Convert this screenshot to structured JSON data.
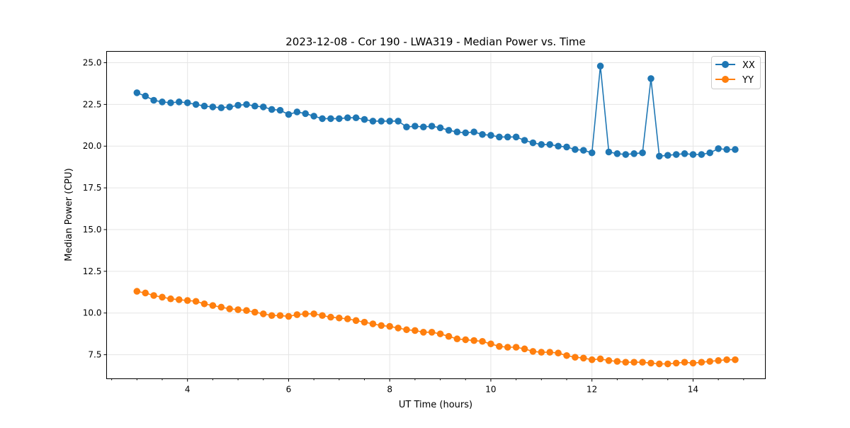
{
  "chart_data": {
    "type": "line",
    "title": "2023-12-08 - Cor 190 - LWA319 - Median Power vs. Time",
    "xlabel": "UT Time (hours)",
    "ylabel": "Median Power (CPU)",
    "xlim": [
      2.4,
      15.43
    ],
    "ylim": [
      6.06,
      25.68
    ],
    "xticks": [
      4,
      6,
      8,
      10,
      12,
      14
    ],
    "xtick_labels": [
      "4",
      "6",
      "8",
      "10",
      "12",
      "14"
    ],
    "yticks": [
      7.5,
      10.0,
      12.5,
      15.0,
      17.5,
      20.0,
      22.5,
      25.0
    ],
    "ytick_labels": [
      "7.5",
      "10.0",
      "12.5",
      "15.0",
      "17.5",
      "20.0",
      "22.5",
      "25.0"
    ],
    "grid": true,
    "legend_position": "top-right",
    "x": [
      3.0,
      3.167,
      3.333,
      3.5,
      3.667,
      3.833,
      4.0,
      4.167,
      4.333,
      4.5,
      4.667,
      4.833,
      5.0,
      5.167,
      5.333,
      5.5,
      5.667,
      5.833,
      6.0,
      6.167,
      6.333,
      6.5,
      6.667,
      6.833,
      7.0,
      7.167,
      7.333,
      7.5,
      7.667,
      7.833,
      8.0,
      8.167,
      8.333,
      8.5,
      8.667,
      8.833,
      9.0,
      9.167,
      9.333,
      9.5,
      9.667,
      9.833,
      10.0,
      10.167,
      10.333,
      10.5,
      10.667,
      10.833,
      11.0,
      11.167,
      11.333,
      11.5,
      11.667,
      11.833,
      12.0,
      12.167,
      12.333,
      12.5,
      12.667,
      12.833,
      13.0,
      13.167,
      13.333,
      13.5,
      13.667,
      13.833,
      14.0,
      14.167,
      14.333,
      14.5,
      14.667,
      14.833
    ],
    "series": [
      {
        "name": "XX",
        "color": "#1f77b4",
        "values": [
          23.2,
          23.0,
          22.75,
          22.65,
          22.6,
          22.65,
          22.6,
          22.5,
          22.4,
          22.35,
          22.3,
          22.35,
          22.45,
          22.5,
          22.4,
          22.35,
          22.2,
          22.15,
          21.9,
          22.05,
          21.95,
          21.8,
          21.65,
          21.65,
          21.65,
          21.7,
          21.7,
          21.6,
          21.5,
          21.5,
          21.5,
          21.5,
          21.15,
          21.2,
          21.15,
          21.2,
          21.1,
          20.95,
          20.85,
          20.8,
          20.85,
          20.7,
          20.65,
          20.55,
          20.55,
          20.55,
          20.35,
          20.2,
          20.1,
          20.1,
          20.0,
          19.95,
          19.8,
          19.75,
          19.6,
          24.8,
          19.65,
          19.55,
          19.5,
          19.55,
          19.6,
          24.05,
          19.4,
          19.45,
          19.5,
          19.55,
          19.5,
          19.5,
          19.6,
          19.85,
          19.8,
          19.8
        ]
      },
      {
        "name": "YY",
        "color": "#ff7f0e",
        "values": [
          11.3,
          11.2,
          11.05,
          10.95,
          10.85,
          10.8,
          10.75,
          10.7,
          10.55,
          10.45,
          10.35,
          10.25,
          10.2,
          10.15,
          10.05,
          9.95,
          9.85,
          9.85,
          9.8,
          9.9,
          9.95,
          9.95,
          9.85,
          9.75,
          9.7,
          9.65,
          9.55,
          9.45,
          9.35,
          9.25,
          9.2,
          9.1,
          9.0,
          8.95,
          8.85,
          8.85,
          8.75,
          8.6,
          8.45,
          8.4,
          8.35,
          8.3,
          8.15,
          8.0,
          7.95,
          7.95,
          7.85,
          7.7,
          7.65,
          7.65,
          7.6,
          7.45,
          7.35,
          7.3,
          7.2,
          7.25,
          7.15,
          7.1,
          7.05,
          7.05,
          7.05,
          7.0,
          6.95,
          6.95,
          7.0,
          7.05,
          7.0,
          7.05,
          7.1,
          7.15,
          7.2,
          7.2
        ]
      }
    ]
  }
}
